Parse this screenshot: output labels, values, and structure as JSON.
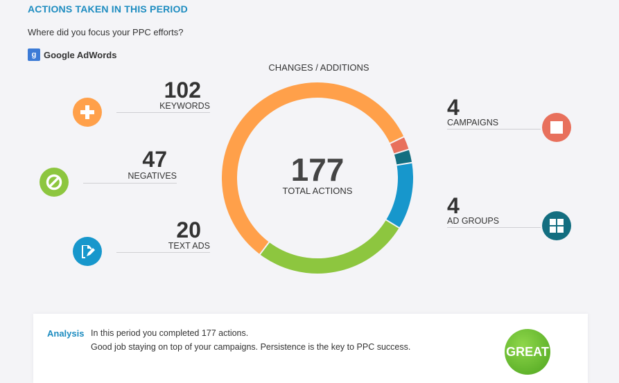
{
  "header": {
    "title": "ACTIONS TAKEN IN THIS PERIOD",
    "subtitle": "Where did you focus your PPC efforts?",
    "source_icon_letter": "g",
    "source_label": "Google AdWords"
  },
  "chart_data": {
    "type": "pie",
    "title": "CHANGES / ADDITIONS",
    "total": {
      "value": "177",
      "label": "TOTAL ACTIONS"
    },
    "series": [
      {
        "name": "KEYWORDS",
        "value": 102,
        "color": "#ffa04a"
      },
      {
        "name": "CAMPAIGNS",
        "value": 4,
        "color": "#e8705c"
      },
      {
        "name": "AD GROUPS",
        "value": 4,
        "color": "#136e80"
      },
      {
        "name": "TEXT ADS",
        "value": 20,
        "color": "#1797cc"
      },
      {
        "name": "NEGATIVES",
        "value": 47,
        "color": "#8dc63f"
      }
    ]
  },
  "stats": {
    "keywords": {
      "value": "102",
      "label": "KEYWORDS",
      "icon": "plus-icon",
      "color": "#ffa04a"
    },
    "negatives": {
      "value": "47",
      "label": "NEGATIVES",
      "icon": "block-icon",
      "color": "#8dc63f"
    },
    "text_ads": {
      "value": "20",
      "label": "TEXT ADS",
      "icon": "edit-icon",
      "color": "#1797cc"
    },
    "campaigns": {
      "value": "4",
      "label": "CAMPAIGNS",
      "icon": "square-icon",
      "color": "#e8705c"
    },
    "ad_groups": {
      "value": "4",
      "label": "AD GROUPS",
      "icon": "grid-icon",
      "color": "#136e80"
    }
  },
  "analysis": {
    "label": "Analysis",
    "line1": "In this period you completed 177 actions.",
    "line2": "Good job staying on top of your campaigns. Persistence is the key to PPC success.",
    "badge": "GREAT"
  }
}
